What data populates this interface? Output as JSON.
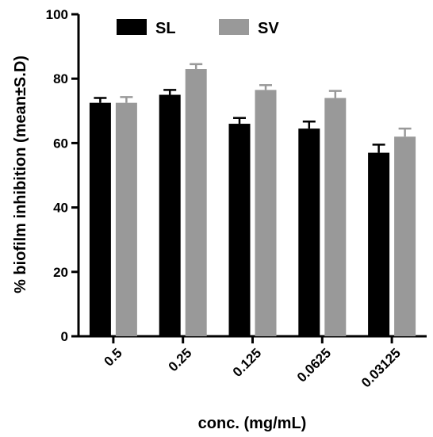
{
  "chart_data": {
    "type": "bar",
    "ylabel": "% biofilm inhibition (mean±S.D)",
    "xlabel": "conc. (mg/mL)",
    "categories": [
      "0.5",
      "0.25",
      "0.125",
      "0.0625",
      "0.03125"
    ],
    "series": [
      {
        "name": "SL",
        "color": "#000000",
        "values": [
          72.5,
          75.0,
          66.0,
          64.5,
          57.0
        ],
        "errors": [
          1.5,
          1.5,
          1.8,
          2.2,
          2.5
        ]
      },
      {
        "name": "SV",
        "color": "#999999",
        "values": [
          72.5,
          83.0,
          76.5,
          74.0,
          62.0
        ],
        "errors": [
          1.8,
          1.5,
          1.5,
          2.2,
          2.5
        ]
      }
    ],
    "ylim": [
      0,
      100
    ],
    "yticks": [
      0,
      20,
      40,
      60,
      80,
      100
    ],
    "grid": false,
    "legend_position": "top"
  }
}
